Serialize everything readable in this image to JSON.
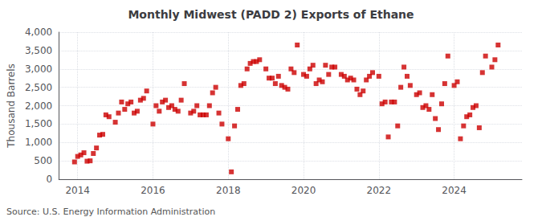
{
  "chart_data": {
    "type": "scatter",
    "title": "Monthly Midwest (PADD 2) Exports of Ethane",
    "ylabel": "Thousand Barrels",
    "annotation": "Source: U.S. Energy Information Administration",
    "x": [
      2013.917,
      2014.0,
      2014.083,
      2014.167,
      2014.25,
      2014.333,
      2014.417,
      2014.5,
      2014.583,
      2014.667,
      2014.75,
      2014.833,
      2015.0,
      2015.083,
      2015.167,
      2015.25,
      2015.333,
      2015.417,
      2015.5,
      2015.583,
      2015.667,
      2015.75,
      2015.833,
      2016.0,
      2016.083,
      2016.167,
      2016.25,
      2016.333,
      2016.417,
      2016.5,
      2016.583,
      2016.667,
      2016.75,
      2016.833,
      2017.0,
      2017.083,
      2017.167,
      2017.25,
      2017.333,
      2017.417,
      2017.5,
      2017.583,
      2017.667,
      2017.75,
      2017.833,
      2018.0,
      2018.083,
      2018.167,
      2018.25,
      2018.333,
      2018.417,
      2018.5,
      2018.583,
      2018.667,
      2018.75,
      2018.833,
      2019.0,
      2019.083,
      2019.167,
      2019.25,
      2019.333,
      2019.417,
      2019.5,
      2019.583,
      2019.667,
      2019.75,
      2019.833,
      2020.0,
      2020.083,
      2020.167,
      2020.25,
      2020.333,
      2020.417,
      2020.5,
      2020.583,
      2020.667,
      2020.75,
      2020.833,
      2021.0,
      2021.083,
      2021.167,
      2021.25,
      2021.333,
      2021.417,
      2021.5,
      2021.583,
      2021.667,
      2021.75,
      2021.833,
      2022.0,
      2022.083,
      2022.167,
      2022.25,
      2022.333,
      2022.417,
      2022.5,
      2022.583,
      2022.667,
      2022.75,
      2022.833,
      2023.0,
      2023.083,
      2023.167,
      2023.25,
      2023.333,
      2023.417,
      2023.5,
      2023.583,
      2023.667,
      2023.75,
      2023.833,
      2024.0,
      2024.083,
      2024.167,
      2024.25,
      2024.333,
      2024.417,
      2024.5,
      2024.583,
      2024.667,
      2024.75,
      2024.833,
      2025.0,
      2025.083,
      2025.167
    ],
    "values": [
      470,
      620,
      660,
      720,
      490,
      500,
      700,
      850,
      1200,
      1220,
      1750,
      1700,
      1550,
      1800,
      2100,
      1900,
      2050,
      2100,
      1800,
      1850,
      2150,
      2200,
      2400,
      1500,
      2000,
      1850,
      2100,
      2150,
      1950,
      2000,
      1900,
      1850,
      2150,
      2600,
      1800,
      1850,
      2000,
      1750,
      1750,
      1750,
      2000,
      2350,
      2500,
      1800,
      1500,
      1100,
      200,
      1450,
      1900,
      2550,
      2600,
      3000,
      3150,
      3200,
      3200,
      3250,
      3000,
      2750,
      2750,
      2600,
      2800,
      2550,
      2500,
      2450,
      3000,
      2900,
      3650,
      2850,
      2800,
      3000,
      3100,
      2600,
      2700,
      2650,
      3100,
      2850,
      3050,
      3050,
      2850,
      2800,
      2700,
      2750,
      2700,
      2450,
      2300,
      2400,
      2700,
      2800,
      2900,
      2800,
      2050,
      2100,
      1150,
      2100,
      2100,
      1450,
      2500,
      3050,
      2800,
      2550,
      2300,
      2350,
      1950,
      2000,
      1900,
      2300,
      1650,
      1350,
      2050,
      2600,
      3350,
      2550,
      2650,
      1100,
      1450,
      1700,
      1750,
      1950,
      2000,
      1400,
      2900,
      3350,
      3050,
      3250,
      3650
    ],
    "color": "#cc0000",
    "marker": "square",
    "xlim": [
      2013.5,
      2025.8
    ],
    "xticks": [
      2014,
      2016,
      2018,
      2020,
      2022,
      2024
    ],
    "ylim": [
      0,
      4000
    ],
    "yticks": [
      0,
      500,
      {
        "value": 1000,
        "label": "1,000"
      },
      {
        "value": 1500,
        "label": "1,500"
      },
      {
        "value": 2000,
        "label": "2,000"
      },
      {
        "value": 2500,
        "label": "2,500"
      },
      {
        "value": 3000,
        "label": "3,000"
      },
      {
        "value": 3500,
        "label": "3,500"
      },
      {
        "value": 4000,
        "label": "4,000"
      }
    ],
    "grid": true
  }
}
